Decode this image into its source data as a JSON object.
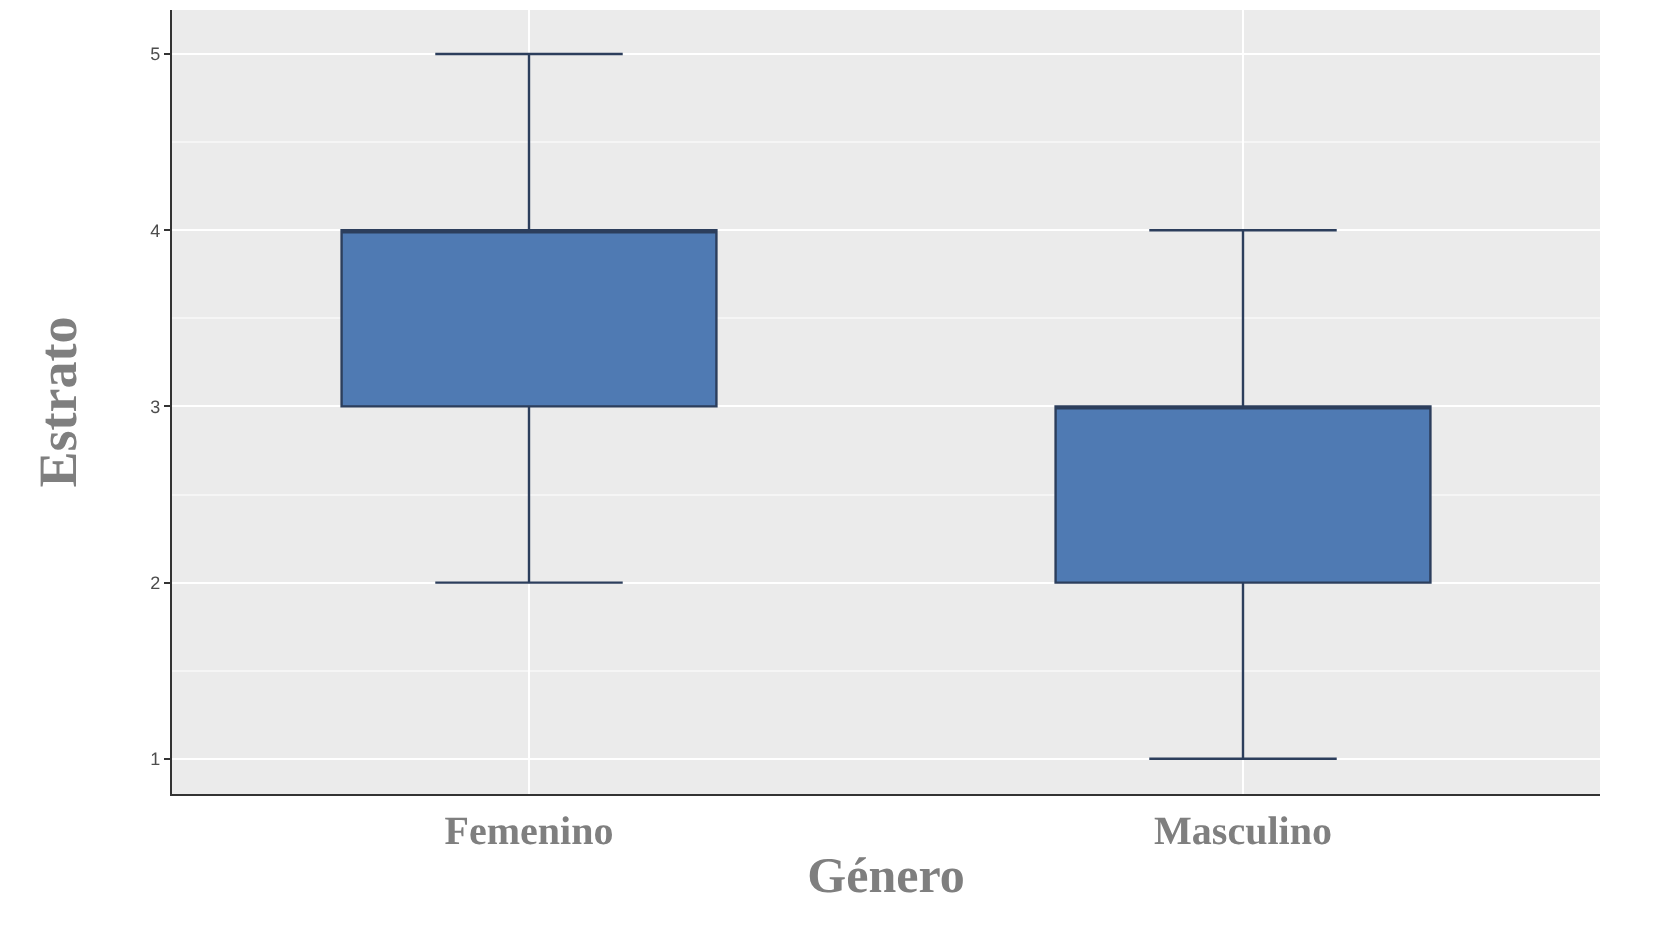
{
  "chart_data": {
    "type": "box",
    "xlabel": "Género",
    "ylabel": "Estrato",
    "categories": [
      "Femenino",
      "Masculino"
    ],
    "boxes": [
      {
        "low": 2,
        "q1": 3,
        "median": 4,
        "q3": 4,
        "high": 5
      },
      {
        "low": 1,
        "q1": 2,
        "median": 3,
        "q3": 3,
        "high": 4
      }
    ],
    "color": "#4f7ab3",
    "ylim": [
      0.8,
      5.25
    ],
    "yticks": [
      1,
      2,
      3,
      4,
      5
    ],
    "grid": true
  }
}
